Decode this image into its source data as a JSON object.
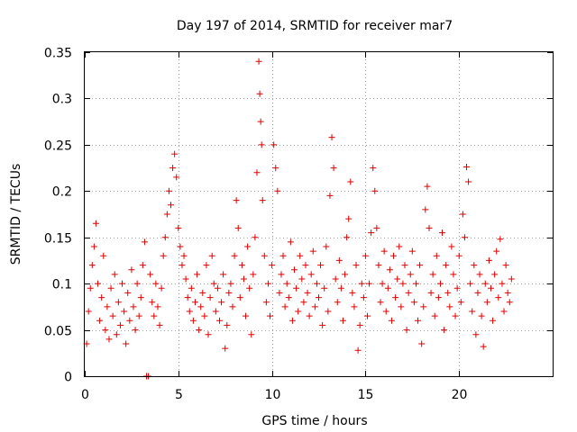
{
  "chart_data": {
    "type": "scatter",
    "title": "Day 197 of 2014, SRMTID for receiver mar7",
    "xlabel": "GPS time / hours",
    "ylabel": "SRMTID / TECUs",
    "xlim": [
      0,
      25
    ],
    "ylim": [
      0,
      0.35
    ],
    "x_ticks": [
      0,
      5,
      10,
      15,
      20
    ],
    "y_ticks": [
      0,
      0.05,
      0.1,
      0.15,
      0.2,
      0.25,
      0.3,
      0.35
    ],
    "x_tick_labels": [
      "0",
      "5",
      "10",
      "15",
      "20"
    ],
    "y_tick_labels": [
      "0",
      "0.05",
      "0.1",
      "0.15",
      "0.2",
      "0.25",
      "0.3",
      "0.35"
    ],
    "grid": true,
    "marker": "+",
    "series": [
      {
        "name": "mar7",
        "color": "#e00000",
        "points": [
          [
            0.1,
            0.035
          ],
          [
            0.2,
            0.07
          ],
          [
            0.3,
            0.095
          ],
          [
            0.4,
            0.12
          ],
          [
            0.5,
            0.14
          ],
          [
            0.6,
            0.165
          ],
          [
            0.7,
            0.1
          ],
          [
            0.8,
            0.06
          ],
          [
            0.9,
            0.085
          ],
          [
            1.0,
            0.13
          ],
          [
            1.1,
            0.05
          ],
          [
            1.2,
            0.075
          ],
          [
            1.3,
            0.04
          ],
          [
            1.4,
            0.095
          ],
          [
            1.5,
            0.065
          ],
          [
            1.6,
            0.11
          ],
          [
            1.7,
            0.045
          ],
          [
            1.8,
            0.08
          ],
          [
            1.9,
            0.055
          ],
          [
            2.0,
            0.1
          ],
          [
            2.1,
            0.07
          ],
          [
            2.2,
            0.035
          ],
          [
            2.3,
            0.09
          ],
          [
            2.4,
            0.06
          ],
          [
            2.5,
            0.115
          ],
          [
            2.6,
            0.075
          ],
          [
            2.7,
            0.05
          ],
          [
            2.8,
            0.1
          ],
          [
            2.9,
            0.065
          ],
          [
            3.0,
            0.085
          ],
          [
            3.1,
            0.12
          ],
          [
            3.2,
            0.145
          ],
          [
            3.3,
            0.0
          ],
          [
            3.4,
            0.0
          ],
          [
            3.5,
            0.11
          ],
          [
            3.6,
            0.08
          ],
          [
            3.7,
            0.065
          ],
          [
            3.8,
            0.1
          ],
          [
            3.9,
            0.075
          ],
          [
            4.0,
            0.055
          ],
          [
            4.1,
            0.095
          ],
          [
            4.2,
            0.13
          ],
          [
            4.3,
            0.15
          ],
          [
            4.4,
            0.175
          ],
          [
            4.5,
            0.2
          ],
          [
            4.6,
            0.185
          ],
          [
            4.7,
            0.225
          ],
          [
            4.8,
            0.24
          ],
          [
            4.9,
            0.215
          ],
          [
            5.0,
            0.16
          ],
          [
            5.1,
            0.14
          ],
          [
            5.2,
            0.12
          ],
          [
            5.3,
            0.13
          ],
          [
            5.4,
            0.105
          ],
          [
            5.5,
            0.085
          ],
          [
            5.6,
            0.07
          ],
          [
            5.7,
            0.095
          ],
          [
            5.8,
            0.06
          ],
          [
            5.9,
            0.08
          ],
          [
            6.0,
            0.11
          ],
          [
            6.1,
            0.05
          ],
          [
            6.2,
            0.075
          ],
          [
            6.3,
            0.09
          ],
          [
            6.4,
            0.065
          ],
          [
            6.5,
            0.12
          ],
          [
            6.6,
            0.045
          ],
          [
            6.7,
            0.085
          ],
          [
            6.8,
            0.13
          ],
          [
            6.9,
            0.1
          ],
          [
            7.0,
            0.07
          ],
          [
            7.1,
            0.095
          ],
          [
            7.2,
            0.06
          ],
          [
            7.3,
            0.08
          ],
          [
            7.4,
            0.11
          ],
          [
            7.5,
            0.03
          ],
          [
            7.6,
            0.055
          ],
          [
            7.7,
            0.09
          ],
          [
            7.8,
            0.1
          ],
          [
            7.9,
            0.075
          ],
          [
            8.0,
            0.13
          ],
          [
            8.1,
            0.19
          ],
          [
            8.2,
            0.16
          ],
          [
            8.3,
            0.085
          ],
          [
            8.4,
            0.12
          ],
          [
            8.5,
            0.105
          ],
          [
            8.6,
            0.065
          ],
          [
            8.7,
            0.14
          ],
          [
            8.8,
            0.095
          ],
          [
            8.9,
            0.045
          ],
          [
            9.0,
            0.11
          ],
          [
            9.1,
            0.15
          ],
          [
            9.2,
            0.22
          ],
          [
            9.3,
            0.34
          ],
          [
            9.35,
            0.305
          ],
          [
            9.4,
            0.275
          ],
          [
            9.45,
            0.25
          ],
          [
            9.5,
            0.19
          ],
          [
            9.6,
            0.13
          ],
          [
            9.7,
            0.08
          ],
          [
            9.8,
            0.1
          ],
          [
            9.9,
            0.065
          ],
          [
            10.0,
            0.12
          ],
          [
            10.1,
            0.25
          ],
          [
            10.2,
            0.225
          ],
          [
            10.3,
            0.2
          ],
          [
            10.4,
            0.09
          ],
          [
            10.5,
            0.11
          ],
          [
            10.6,
            0.13
          ],
          [
            10.7,
            0.075
          ],
          [
            10.8,
            0.1
          ],
          [
            10.9,
            0.085
          ],
          [
            11.0,
            0.145
          ],
          [
            11.1,
            0.06
          ],
          [
            11.2,
            0.115
          ],
          [
            11.3,
            0.095
          ],
          [
            11.4,
            0.07
          ],
          [
            11.5,
            0.13
          ],
          [
            11.6,
            0.105
          ],
          [
            11.7,
            0.08
          ],
          [
            11.8,
            0.12
          ],
          [
            11.9,
            0.09
          ],
          [
            12.0,
            0.065
          ],
          [
            12.1,
            0.11
          ],
          [
            12.2,
            0.135
          ],
          [
            12.3,
            0.075
          ],
          [
            12.4,
            0.1
          ],
          [
            12.5,
            0.085
          ],
          [
            12.6,
            0.12
          ],
          [
            12.7,
            0.055
          ],
          [
            12.8,
            0.095
          ],
          [
            12.9,
            0.14
          ],
          [
            13.0,
            0.07
          ],
          [
            13.1,
            0.195
          ],
          [
            13.2,
            0.258
          ],
          [
            13.3,
            0.225
          ],
          [
            13.4,
            0.105
          ],
          [
            13.5,
            0.08
          ],
          [
            13.6,
            0.125
          ],
          [
            13.7,
            0.095
          ],
          [
            13.8,
            0.06
          ],
          [
            13.9,
            0.11
          ],
          [
            14.0,
            0.15
          ],
          [
            14.1,
            0.17
          ],
          [
            14.2,
            0.21
          ],
          [
            14.3,
            0.09
          ],
          [
            14.4,
            0.075
          ],
          [
            14.5,
            0.12
          ],
          [
            14.6,
            0.028
          ],
          [
            14.7,
            0.055
          ],
          [
            14.8,
            0.1
          ],
          [
            14.9,
            0.085
          ],
          [
            15.0,
            0.13
          ],
          [
            15.1,
            0.065
          ],
          [
            15.2,
            0.1
          ],
          [
            15.3,
            0.155
          ],
          [
            15.4,
            0.225
          ],
          [
            15.5,
            0.2
          ],
          [
            15.6,
            0.16
          ],
          [
            15.7,
            0.12
          ],
          [
            15.8,
            0.08
          ],
          [
            15.9,
            0.1
          ],
          [
            16.0,
            0.135
          ],
          [
            16.1,
            0.07
          ],
          [
            16.2,
            0.095
          ],
          [
            16.3,
            0.115
          ],
          [
            16.4,
            0.06
          ],
          [
            16.5,
            0.13
          ],
          [
            16.6,
            0.085
          ],
          [
            16.7,
            0.105
          ],
          [
            16.8,
            0.14
          ],
          [
            16.9,
            0.075
          ],
          [
            17.0,
            0.1
          ],
          [
            17.1,
            0.12
          ],
          [
            17.2,
            0.05
          ],
          [
            17.3,
            0.09
          ],
          [
            17.4,
            0.11
          ],
          [
            17.5,
            0.135
          ],
          [
            17.6,
            0.08
          ],
          [
            17.7,
            0.1
          ],
          [
            17.8,
            0.06
          ],
          [
            17.9,
            0.12
          ],
          [
            18.0,
            0.035
          ],
          [
            18.1,
            0.075
          ],
          [
            18.2,
            0.18
          ],
          [
            18.3,
            0.205
          ],
          [
            18.4,
            0.16
          ],
          [
            18.5,
            0.09
          ],
          [
            18.6,
            0.11
          ],
          [
            18.7,
            0.065
          ],
          [
            18.8,
            0.13
          ],
          [
            18.9,
            0.085
          ],
          [
            19.0,
            0.1
          ],
          [
            19.1,
            0.155
          ],
          [
            19.2,
            0.05
          ],
          [
            19.3,
            0.12
          ],
          [
            19.4,
            0.09
          ],
          [
            19.5,
            0.075
          ],
          [
            19.6,
            0.14
          ],
          [
            19.7,
            0.11
          ],
          [
            19.8,
            0.065
          ],
          [
            19.9,
            0.095
          ],
          [
            20.0,
            0.13
          ],
          [
            20.1,
            0.08
          ],
          [
            20.2,
            0.175
          ],
          [
            20.3,
            0.15
          ],
          [
            20.4,
            0.226
          ],
          [
            20.5,
            0.21
          ],
          [
            20.6,
            0.1
          ],
          [
            20.7,
            0.07
          ],
          [
            20.8,
            0.12
          ],
          [
            20.9,
            0.045
          ],
          [
            21.0,
            0.09
          ],
          [
            21.1,
            0.11
          ],
          [
            21.2,
            0.065
          ],
          [
            21.3,
            0.032
          ],
          [
            21.4,
            0.1
          ],
          [
            21.5,
            0.08
          ],
          [
            21.6,
            0.125
          ],
          [
            21.7,
            0.095
          ],
          [
            21.8,
            0.06
          ],
          [
            21.9,
            0.11
          ],
          [
            22.0,
            0.135
          ],
          [
            22.1,
            0.085
          ],
          [
            22.2,
            0.148
          ],
          [
            22.3,
            0.1
          ],
          [
            22.4,
            0.07
          ],
          [
            22.5,
            0.12
          ],
          [
            22.6,
            0.09
          ],
          [
            22.7,
            0.08
          ],
          [
            22.8,
            0.105
          ]
        ]
      }
    ]
  }
}
